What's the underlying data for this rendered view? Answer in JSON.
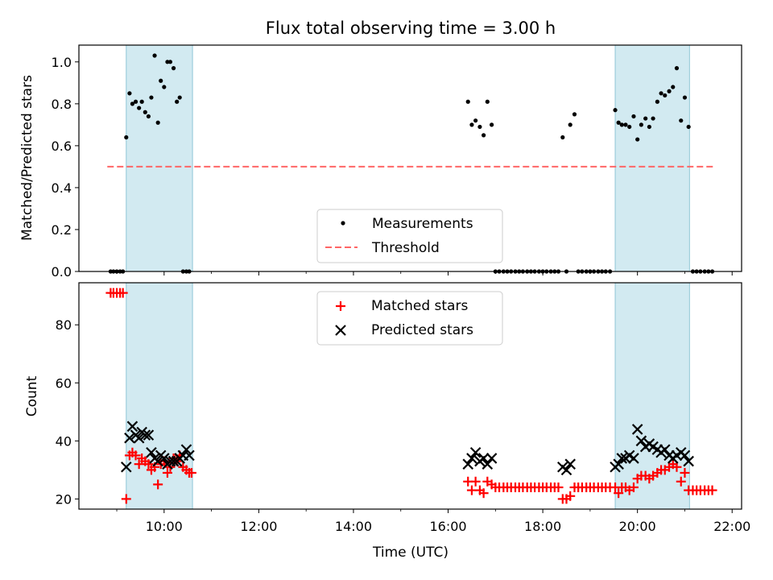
{
  "figure": {
    "title": "Flux total observing time = 3.00 h",
    "xlabel": "Time (UTC)",
    "x_ticks": [
      "10:00",
      "12:00",
      "14:00",
      "16:00",
      "18:00",
      "20:00",
      "22:00"
    ]
  },
  "colors": {
    "shade": "#add8e6",
    "measurements": "#000000",
    "threshold": "#ff6666",
    "matched": "#ff0000",
    "predicted": "#000000"
  },
  "chart_data": [
    {
      "type": "scatter",
      "ylabel": "Matched/Predicted stars",
      "xlim": [
        8.2,
        22.2
      ],
      "ylim": [
        0.0,
        1.08
      ],
      "y_ticks": [
        "0.0",
        "0.2",
        "0.4",
        "0.6",
        "0.8",
        "1.0"
      ],
      "shaded_intervals": [
        [
          9.2,
          10.6
        ],
        [
          19.53,
          21.1
        ]
      ],
      "legend": {
        "position": "lower-center",
        "entries": [
          "Measurements",
          "Threshold"
        ]
      },
      "threshold": {
        "name": "Threshold",
        "y": 0.5,
        "x_range": [
          8.8,
          21.6
        ]
      },
      "measurements": {
        "name": "Measurements",
        "x": [
          8.87,
          8.93,
          9.0,
          9.07,
          9.13,
          9.2,
          9.27,
          9.33,
          9.4,
          9.47,
          9.53,
          9.6,
          9.67,
          9.73,
          9.8,
          9.87,
          9.93,
          10.0,
          10.07,
          10.13,
          10.2,
          10.27,
          10.33,
          10.4,
          10.47,
          10.53,
          16.42,
          16.5,
          16.58,
          16.67,
          16.75,
          16.83,
          16.92,
          17.0,
          17.08,
          17.17,
          17.25,
          17.33,
          17.42,
          17.5,
          17.58,
          17.67,
          17.75,
          17.83,
          17.92,
          18.0,
          18.08,
          18.17,
          18.25,
          18.33,
          18.42,
          18.5,
          18.58,
          18.67,
          18.75,
          18.83,
          18.92,
          19.0,
          19.08,
          19.17,
          19.25,
          19.33,
          19.42,
          19.53,
          19.6,
          19.67,
          19.75,
          19.83,
          19.92,
          20.0,
          20.08,
          20.17,
          20.25,
          20.33,
          20.42,
          20.5,
          20.58,
          20.67,
          20.75,
          20.83,
          20.92,
          21.0,
          21.08,
          21.17,
          21.25,
          21.33,
          21.42,
          21.5,
          21.58
        ],
        "y": [
          0.0,
          0.0,
          0.0,
          0.0,
          0.0,
          0.64,
          0.85,
          0.8,
          0.81,
          0.78,
          0.81,
          0.76,
          0.74,
          0.83,
          1.03,
          0.71,
          0.91,
          0.88,
          1.0,
          1.0,
          0.97,
          0.81,
          0.83,
          0.0,
          0.0,
          0.0,
          0.81,
          0.7,
          0.72,
          0.69,
          0.65,
          0.81,
          0.7,
          0.0,
          0.0,
          0.0,
          0.0,
          0.0,
          0.0,
          0.0,
          0.0,
          0.0,
          0.0,
          0.0,
          0.0,
          0.0,
          0.0,
          0.0,
          0.0,
          0.0,
          0.64,
          0.0,
          0.7,
          0.75,
          0.0,
          0.0,
          0.0,
          0.0,
          0.0,
          0.0,
          0.0,
          0.0,
          0.0,
          0.77,
          0.71,
          0.7,
          0.7,
          0.69,
          0.74,
          0.63,
          0.7,
          0.73,
          0.69,
          0.73,
          0.81,
          0.85,
          0.84,
          0.86,
          0.88,
          0.97,
          0.72,
          0.83,
          0.69,
          0.0,
          0.0,
          0.0,
          0.0,
          0.0,
          0.0
        ]
      }
    },
    {
      "type": "scatter",
      "ylabel": "Count",
      "xlim": [
        8.2,
        22.2
      ],
      "ylim": [
        16.5,
        94.5
      ],
      "y_ticks": [
        "20",
        "40",
        "60",
        "80"
      ],
      "shaded_intervals": [
        [
          9.2,
          10.6
        ],
        [
          19.53,
          21.1
        ]
      ],
      "legend": {
        "position": "upper-center",
        "entries": [
          "Matched stars",
          "Predicted stars"
        ]
      },
      "series": [
        {
          "name": "Matched stars",
          "marker": "plus",
          "x": [
            8.87,
            8.93,
            9.0,
            9.07,
            9.13,
            9.2,
            9.27,
            9.33,
            9.4,
            9.47,
            9.53,
            9.6,
            9.67,
            9.73,
            9.8,
            9.87,
            9.93,
            10.0,
            10.07,
            10.13,
            10.2,
            10.27,
            10.33,
            10.4,
            10.47,
            10.53,
            10.58,
            16.42,
            16.5,
            16.58,
            16.67,
            16.75,
            16.83,
            16.92,
            17.0,
            17.08,
            17.17,
            17.25,
            17.33,
            17.42,
            17.5,
            17.58,
            17.67,
            17.75,
            17.83,
            17.92,
            18.0,
            18.08,
            18.17,
            18.25,
            18.33,
            18.42,
            18.5,
            18.58,
            18.67,
            18.75,
            18.83,
            18.92,
            19.0,
            19.08,
            19.17,
            19.25,
            19.33,
            19.42,
            19.53,
            19.6,
            19.67,
            19.75,
            19.83,
            19.92,
            20.0,
            20.08,
            20.17,
            20.25,
            20.33,
            20.42,
            20.5,
            20.58,
            20.67,
            20.75,
            20.83,
            20.92,
            21.0,
            21.08,
            21.17,
            21.25,
            21.33,
            21.42,
            21.5,
            21.58
          ],
          "y": [
            91,
            91,
            91,
            91,
            91,
            20,
            35,
            36,
            35,
            32,
            34,
            33,
            32,
            30,
            31,
            25,
            32,
            33,
            29,
            31,
            34,
            33,
            35,
            31,
            30,
            29,
            29,
            26,
            23,
            26,
            23,
            22,
            26,
            25,
            24,
            24,
            24,
            24,
            24,
            24,
            24,
            24,
            24,
            24,
            24,
            24,
            24,
            24,
            24,
            24,
            24,
            20,
            20,
            21,
            24,
            24,
            24,
            24,
            24,
            24,
            24,
            24,
            24,
            24,
            24,
            22,
            24,
            24,
            23,
            24,
            27,
            28,
            28,
            27,
            28,
            29,
            30,
            30,
            31,
            32,
            31,
            26,
            29,
            23,
            23,
            23,
            23,
            23,
            23,
            23
          ]
        },
        {
          "name": "Predicted stars",
          "marker": "x",
          "x": [
            9.2,
            9.27,
            9.33,
            9.4,
            9.47,
            9.53,
            9.6,
            9.67,
            9.73,
            9.8,
            9.87,
            9.93,
            10.0,
            10.07,
            10.13,
            10.2,
            10.27,
            10.33,
            10.4,
            10.47,
            10.53,
            16.42,
            16.5,
            16.58,
            16.67,
            16.75,
            16.83,
            16.92,
            18.42,
            18.5,
            18.58,
            19.53,
            19.6,
            19.67,
            19.75,
            19.83,
            19.92,
            20.0,
            20.08,
            20.17,
            20.25,
            20.33,
            20.42,
            20.5,
            20.58,
            20.67,
            20.75,
            20.83,
            20.92,
            21.0,
            21.08
          ],
          "y": [
            31,
            41,
            45,
            42,
            41,
            43,
            42,
            42,
            36,
            34,
            33,
            35,
            34,
            32,
            33,
            33,
            33,
            34,
            35,
            37,
            35,
            32,
            34,
            36,
            33,
            34,
            32,
            34,
            31,
            30,
            32,
            31,
            32,
            34,
            34,
            35,
            34,
            44,
            40,
            38,
            39,
            38,
            37,
            36,
            37,
            35,
            34,
            35,
            36,
            35,
            33
          ]
        }
      ]
    }
  ]
}
